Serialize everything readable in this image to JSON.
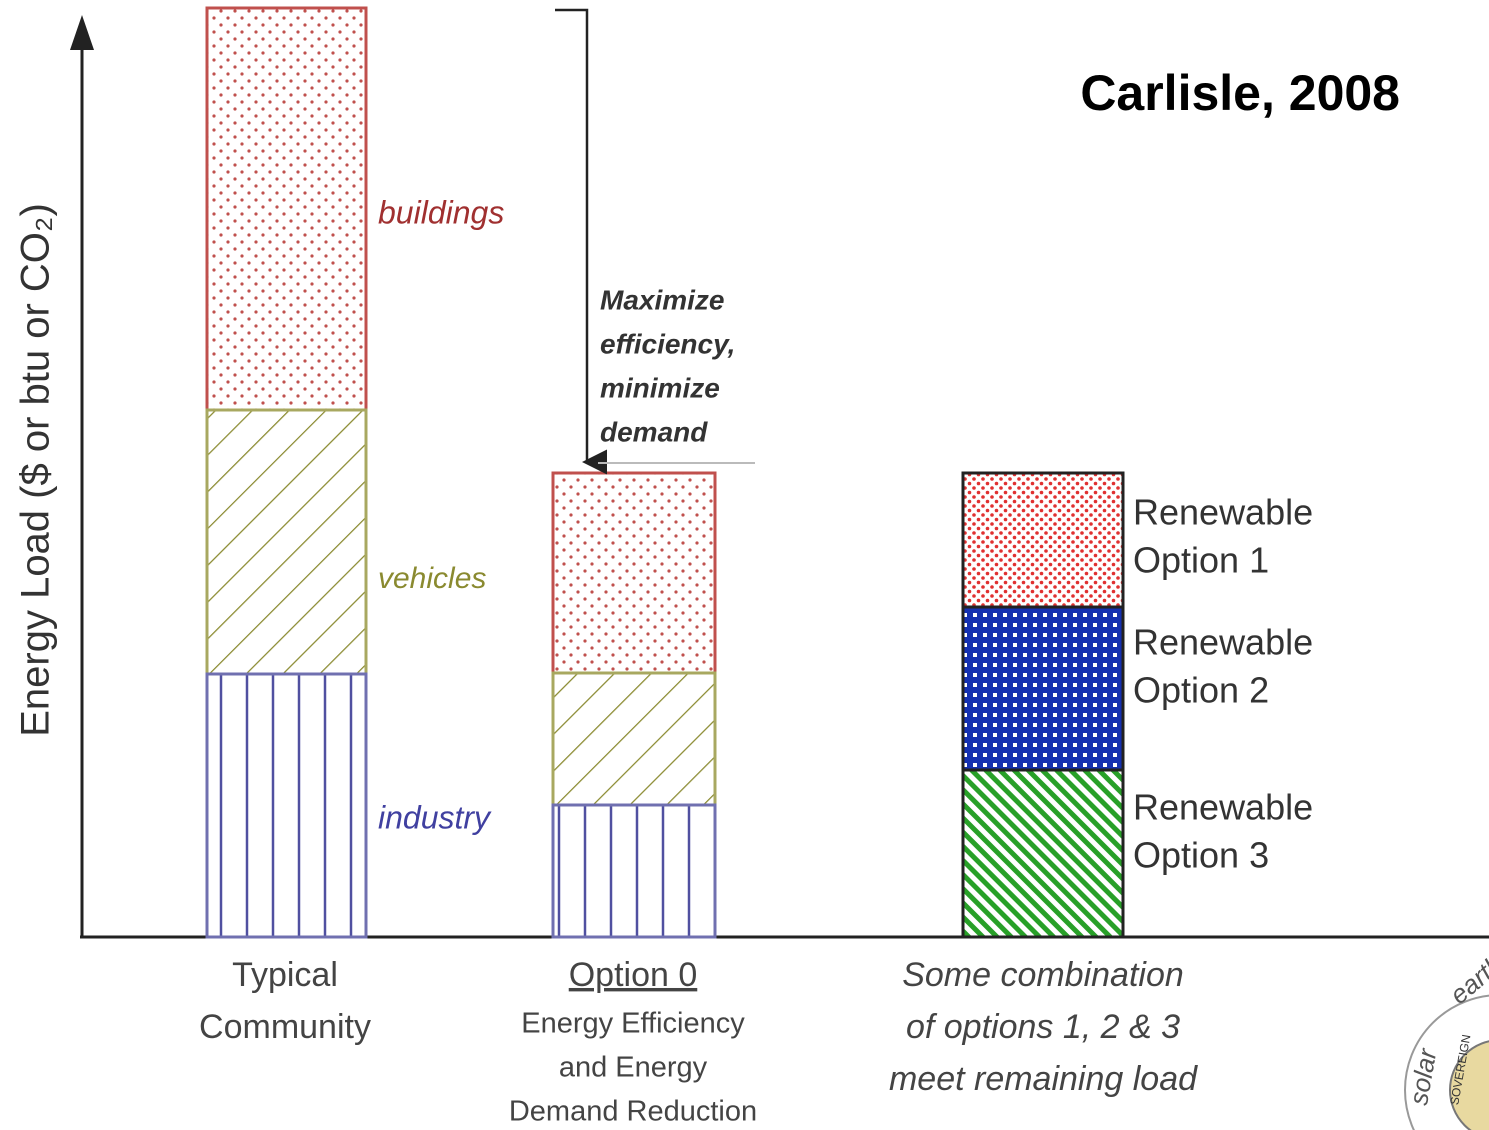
{
  "title": "Carlisle, 2008",
  "y_axis_label": "Energy Load ($ or btu or CO₂)",
  "segments": {
    "buildings": "buildings",
    "vehicles": "vehicles",
    "industry": "industry"
  },
  "annotation": [
    "Maximize",
    "efficiency,",
    "minimize",
    "demand"
  ],
  "renewables": [
    [
      "Renewable",
      "Option 1"
    ],
    [
      "Renewable",
      "Option 2"
    ],
    [
      "Renewable",
      "Option 3"
    ]
  ],
  "columns": [
    {
      "label": [
        "Typical",
        "Community"
      ]
    },
    {
      "label": [
        "Option 0"
      ],
      "sublabel": [
        "Energy Efficiency",
        "and Energy",
        "Demand Reduction"
      ]
    },
    {
      "label": [
        "Some combination",
        "of options 1, 2 & 3",
        "meet remaining load"
      ]
    }
  ],
  "logo": [
    "earth",
    "solar",
    "SOVEREIGN"
  ]
}
